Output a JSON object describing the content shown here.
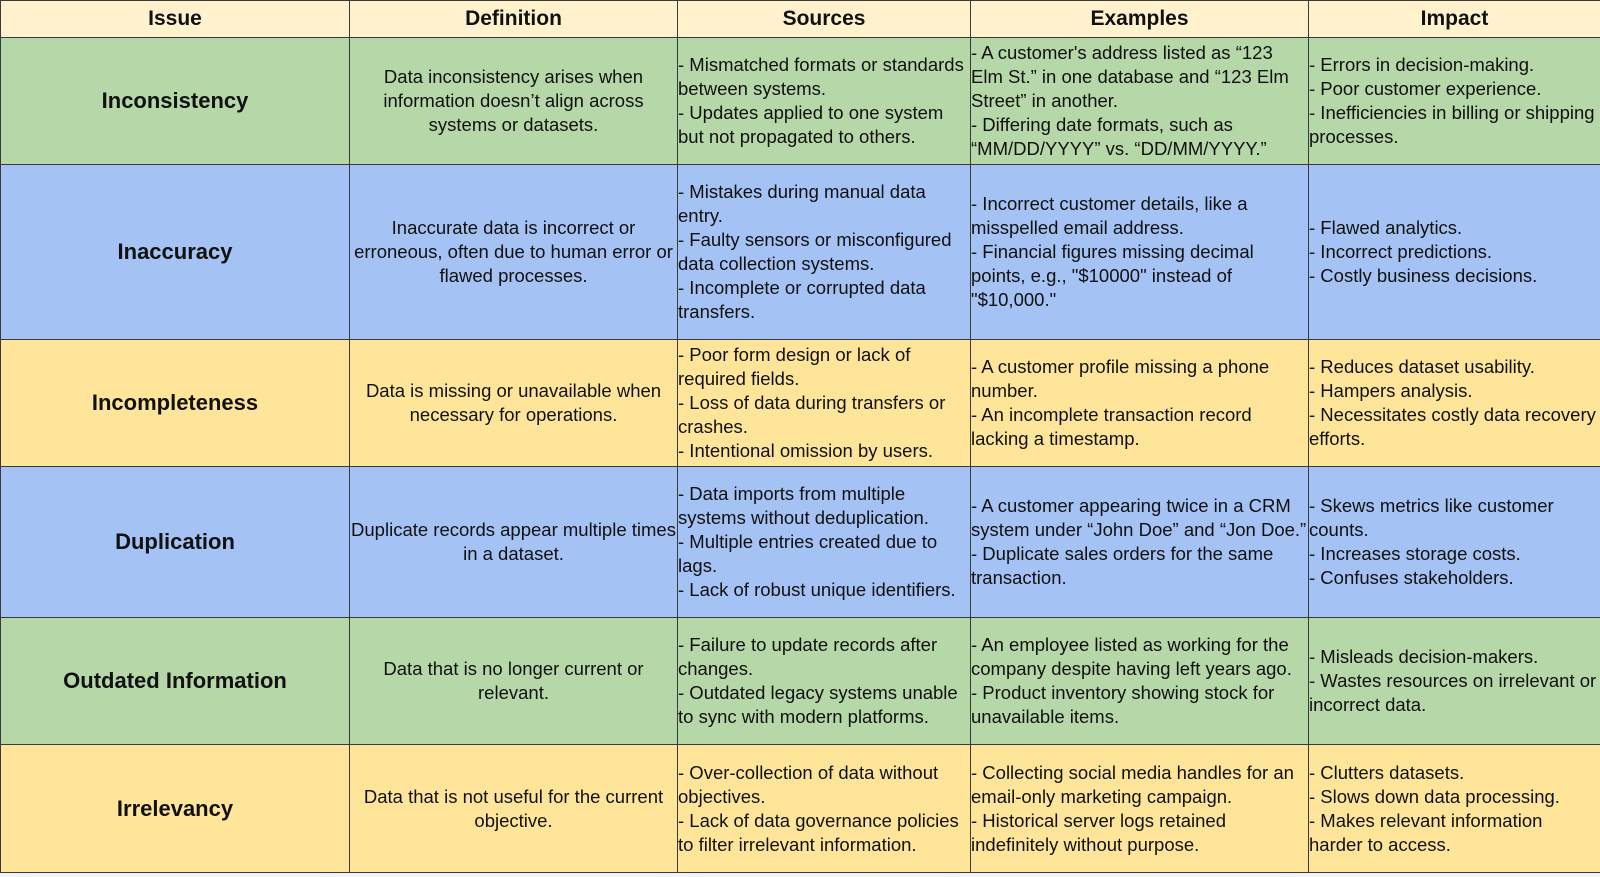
{
  "headers": {
    "issue": "Issue",
    "definition": "Definition",
    "sources": "Sources",
    "examples": "Examples",
    "impact": "Impact"
  },
  "colors": {
    "header_bg": "#fff2cc",
    "green": "#b6d7a8",
    "blue": "#a4c2f4",
    "yellow": "#ffe599",
    "border": "#3a3a3a"
  },
  "rows": [
    {
      "issue": "Inconsistency",
      "definition": "Data inconsistency arises when information doesn’t align across systems or datasets.",
      "sources": [
        "- Mismatched formats or standards between systems.",
        "- Updates applied to one system but not propagated to others."
      ],
      "examples": [
        "- A customer's address listed as “123 Elm St.” in one database and “123 Elm Street” in another.",
        "- Differing date formats, such as “MM/DD/YYYY” vs. “DD/MM/YYYY.”"
      ],
      "impact": [
        "- Errors in decision-making.",
        "- Poor customer experience.",
        "- Inefficiencies in billing or shipping processes."
      ]
    },
    {
      "issue": "Inaccuracy",
      "definition": "Inaccurate data is incorrect or erroneous, often due to human error or flawed processes.",
      "sources": [
        "- Mistakes during manual data entry.",
        "- Faulty sensors or misconfigured data collection systems.",
        "- Incomplete or corrupted data transfers."
      ],
      "examples": [
        "- Incorrect customer details, like a misspelled email address.",
        "- Financial figures missing decimal points, e.g., \"$10000\" instead of \"$10,000.\""
      ],
      "impact": [
        "- Flawed analytics.",
        "- Incorrect predictions.",
        "- Costly business decisions."
      ]
    },
    {
      "issue": "Incompleteness",
      "definition": "Data is missing or unavailable when necessary for operations.",
      "sources": [
        "- Poor form design or lack of required fields.",
        "- Loss of data during transfers or crashes.",
        "- Intentional omission by users."
      ],
      "examples": [
        "- A customer profile missing a phone number.",
        "- An incomplete transaction record lacking a timestamp."
      ],
      "impact": [
        "- Reduces dataset usability.",
        "- Hampers analysis.",
        "- Necessitates costly data recovery efforts."
      ]
    },
    {
      "issue": "Duplication",
      "definition": "Duplicate records appear multiple times in a dataset.",
      "sources": [
        "- Data imports from multiple systems without deduplication.",
        "- Multiple entries created due to lags.",
        "- Lack of robust unique identifiers."
      ],
      "examples": [
        "- A customer appearing twice in a CRM system under “John Doe” and “Jon Doe.”",
        "- Duplicate sales orders for the same transaction."
      ],
      "impact": [
        "- Skews metrics like customer counts.",
        "- Increases storage costs.",
        "- Confuses stakeholders."
      ]
    },
    {
      "issue": "Outdated Information",
      "definition": "Data that is no longer current or relevant.",
      "sources": [
        "- Failure to update records after changes.",
        "- Outdated legacy systems unable to sync with modern platforms."
      ],
      "examples": [
        "- An employee listed as working for the company despite having left years ago.",
        "- Product inventory showing stock for unavailable items."
      ],
      "impact": [
        "- Misleads decision-makers.",
        "- Wastes resources on irrelevant or incorrect data."
      ]
    },
    {
      "issue": "Irrelevancy",
      "definition": "Data that is not useful for the current objective.",
      "sources": [
        "- Over-collection of data without objectives.",
        "- Lack of data governance policies to filter irrelevant information."
      ],
      "examples": [
        "- Collecting social media handles for an email-only marketing campaign.",
        "- Historical server logs retained indefinitely without purpose."
      ],
      "impact": [
        "- Clutters datasets.",
        "- Slows down data processing.",
        "- Makes relevant information harder to access."
      ]
    }
  ]
}
